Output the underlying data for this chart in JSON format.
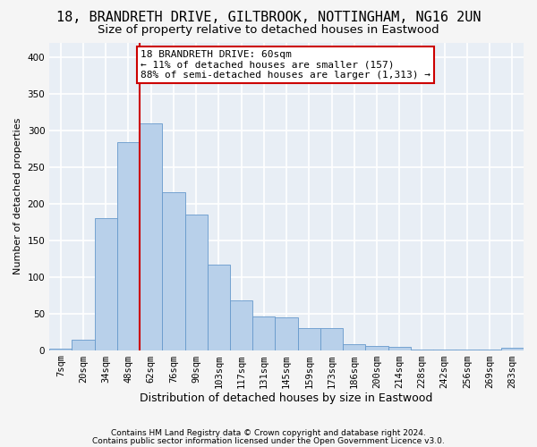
{
  "title1": "18, BRANDRETH DRIVE, GILTBROOK, NOTTINGHAM, NG16 2UN",
  "title2": "Size of property relative to detached houses in Eastwood",
  "xlabel": "Distribution of detached houses by size in Eastwood",
  "ylabel": "Number of detached properties",
  "footnote1": "Contains HM Land Registry data © Crown copyright and database right 2024.",
  "footnote2": "Contains public sector information licensed under the Open Government Licence v3.0.",
  "bin_labels": [
    "7sqm",
    "20sqm",
    "34sqm",
    "48sqm",
    "62sqm",
    "76sqm",
    "90sqm",
    "103sqm",
    "117sqm",
    "131sqm",
    "145sqm",
    "159sqm",
    "173sqm",
    "186sqm",
    "200sqm",
    "214sqm",
    "228sqm",
    "242sqm",
    "256sqm",
    "269sqm",
    "283sqm"
  ],
  "bar_heights": [
    2,
    14,
    180,
    284,
    310,
    216,
    185,
    117,
    68,
    46,
    45,
    30,
    30,
    8,
    6,
    4,
    1,
    1,
    1,
    1,
    3
  ],
  "bar_color": "#b8d0ea",
  "bar_edge_color": "#6699cc",
  "property_line_bin": 4,
  "property_line_color": "#cc0000",
  "annotation_line1": "18 BRANDRETH DRIVE: 60sqm",
  "annotation_line2": "← 11% of detached houses are smaller (157)",
  "annotation_line3": "88% of semi-detached houses are larger (1,313) →",
  "annotation_box_color": "#ffffff",
  "annotation_box_edge_color": "#cc0000",
  "ylim": [
    0,
    420
  ],
  "yticks": [
    0,
    50,
    100,
    150,
    200,
    250,
    300,
    350,
    400
  ],
  "background_color": "#e8eef5",
  "grid_color": "#ffffff",
  "fig_bg_color": "#f5f5f5",
  "title1_fontsize": 11,
  "title2_fontsize": 9.5,
  "xlabel_fontsize": 9,
  "ylabel_fontsize": 8,
  "tick_fontsize": 7.5,
  "annotation_fontsize": 8,
  "footnote_fontsize": 6.5
}
